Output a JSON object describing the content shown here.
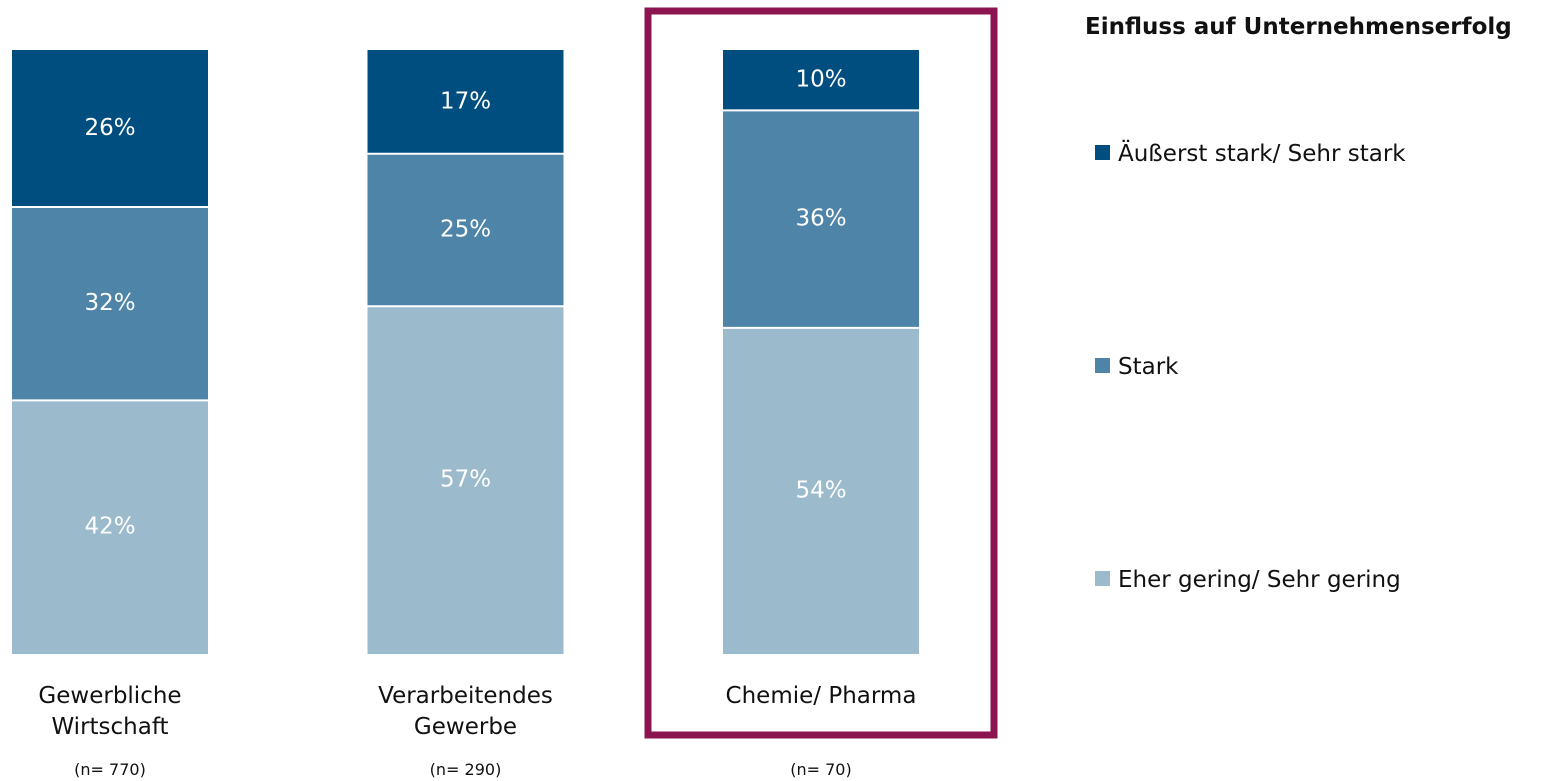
{
  "chart_data": {
    "type": "stacked-bar",
    "legend_title": "Einfluss auf Unternehmenserfolg",
    "categories": [
      "Gewerbliche Wirtschaft",
      "Verarbeitendes Gewerbe",
      "Chemie/ Pharma"
    ],
    "sample_sizes": [
      "(n= 770)",
      "(n= 290)",
      "(n= 70)"
    ],
    "highlight_category": 2,
    "highlight_color": "#8b1451",
    "series": [
      {
        "name": "Äußerst stark/ Sehr stark",
        "color": "#004d7f",
        "values": [
          26,
          17,
          10
        ],
        "value_labels": [
          "26%",
          "17%",
          "10%"
        ]
      },
      {
        "name": "Stark",
        "color": "#4e84a8",
        "values": [
          32,
          25,
          36
        ],
        "value_labels": [
          "32%",
          "25%",
          "36%"
        ]
      },
      {
        "name": "Eher gering/ Sehr gering",
        "color": "#9bbacc",
        "values": [
          42,
          57,
          54
        ],
        "value_labels": [
          "42%",
          "57%",
          "54%"
        ]
      }
    ]
  }
}
